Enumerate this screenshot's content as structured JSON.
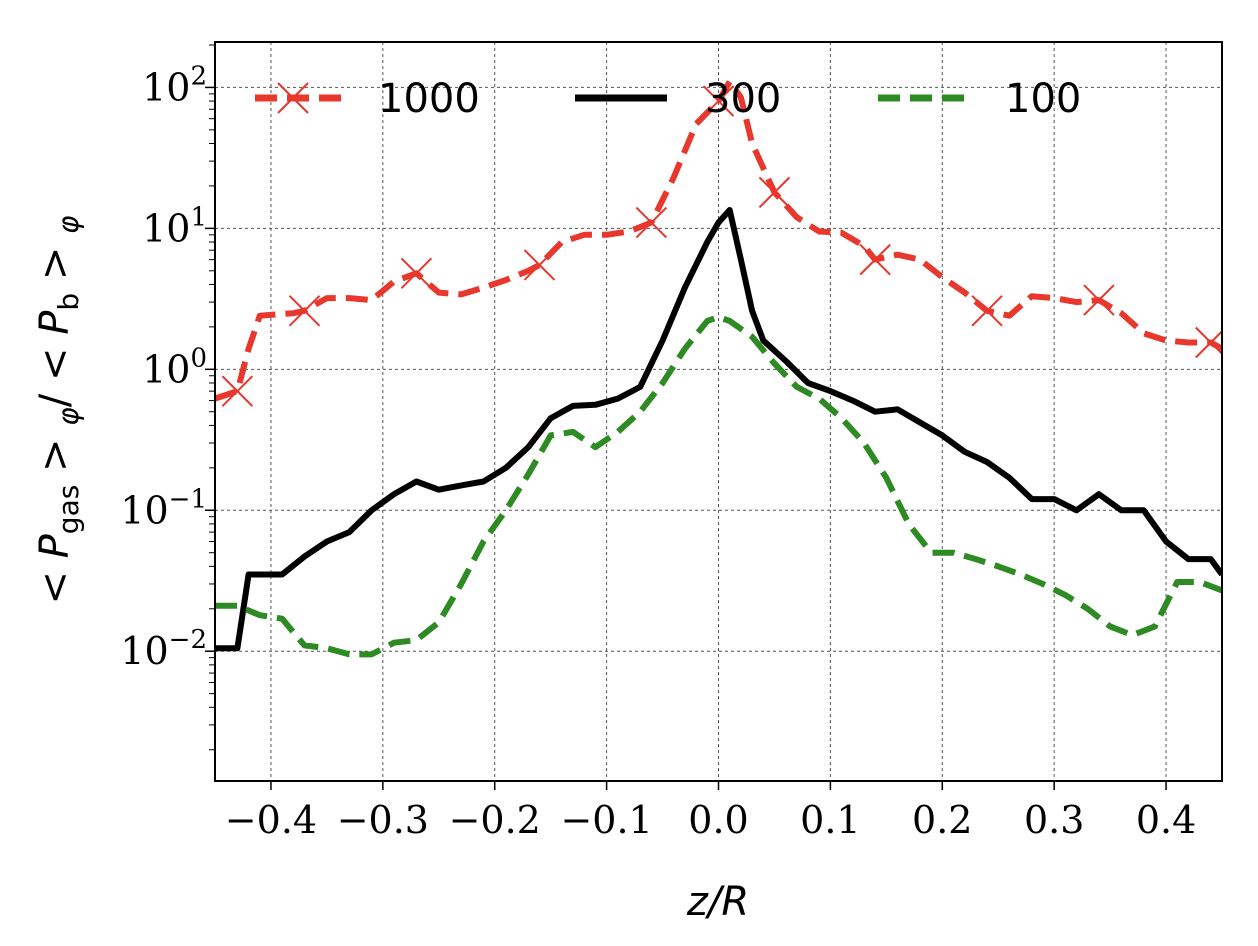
{
  "chart_data": {
    "type": "line",
    "xlabel": "z/R",
    "ylabel": "< P_gas >_φ / < P_b >_φ",
    "ylabel_parts": {
      "open": "< ",
      "p1": "P",
      "sub1": "gas",
      "mid": " > ",
      "phi1": "φ",
      "slash": "/ < ",
      "p2": "P",
      "sub2": "b",
      "close": " > ",
      "phi2": "φ"
    },
    "xlim": [
      -0.45,
      0.45
    ],
    "ylim": [
      0.0012,
      210
    ],
    "yscale": "log",
    "grid": true,
    "legend": {
      "placement": "top",
      "columns": 3
    },
    "x_ticks": [
      -0.4,
      -0.3,
      -0.2,
      -0.1,
      0.0,
      0.1,
      0.2,
      0.3,
      0.4
    ],
    "x_tick_labels": [
      "−0.4",
      "−0.3",
      "−0.2",
      "−0.1",
      "0.0",
      "0.1",
      "0.2",
      "0.3",
      "0.4"
    ],
    "y_ticks": [
      0.01,
      0.1,
      1,
      10,
      100
    ],
    "y_tick_labels": [
      {
        "base": "10",
        "exp": "−2"
      },
      {
        "base": "10",
        "exp": "−1"
      },
      {
        "base": "10",
        "exp": "0"
      },
      {
        "base": "10",
        "exp": "1"
      },
      {
        "base": "10",
        "exp": "2"
      }
    ],
    "series": [
      {
        "name": "1000",
        "color": "#e8372c",
        "style": "dashed",
        "marker": "x",
        "marker_x": [
          -0.43,
          -0.37,
          -0.27,
          -0.16,
          -0.06,
          0.0,
          0.05,
          0.14,
          0.24,
          0.34,
          0.44
        ],
        "x": [
          -0.45,
          -0.43,
          -0.42,
          -0.41,
          -0.38,
          -0.37,
          -0.35,
          -0.33,
          -0.31,
          -0.29,
          -0.27,
          -0.25,
          -0.23,
          -0.21,
          -0.19,
          -0.17,
          -0.16,
          -0.14,
          -0.12,
          -0.1,
          -0.08,
          -0.06,
          -0.04,
          -0.02,
          0.0,
          0.01,
          0.02,
          0.03,
          0.05,
          0.07,
          0.09,
          0.11,
          0.13,
          0.14,
          0.16,
          0.18,
          0.2,
          0.22,
          0.24,
          0.26,
          0.28,
          0.3,
          0.32,
          0.34,
          0.36,
          0.38,
          0.4,
          0.42,
          0.44,
          0.45
        ],
        "values": [
          0.62,
          0.7,
          1.4,
          2.4,
          2.5,
          2.6,
          3.2,
          3.2,
          3.1,
          4.2,
          4.8,
          3.5,
          3.4,
          3.8,
          4.3,
          5.0,
          5.5,
          8.0,
          9.0,
          9.0,
          9.5,
          11.0,
          23,
          55,
          80,
          110,
          85,
          40,
          18,
          12,
          9.5,
          9.3,
          7.5,
          6.0,
          6.5,
          6.0,
          4.5,
          3.5,
          2.6,
          2.4,
          3.3,
          3.2,
          3.0,
          3.1,
          2.5,
          1.8,
          1.6,
          1.55,
          1.55,
          1.4
        ]
      },
      {
        "name": "300",
        "color": "#000000",
        "style": "solid",
        "x": [
          -0.45,
          -0.43,
          -0.42,
          -0.39,
          -0.37,
          -0.35,
          -0.33,
          -0.31,
          -0.29,
          -0.27,
          -0.25,
          -0.23,
          -0.21,
          -0.19,
          -0.17,
          -0.15,
          -0.13,
          -0.11,
          -0.09,
          -0.07,
          -0.05,
          -0.03,
          -0.01,
          0.0,
          0.01,
          0.02,
          0.03,
          0.04,
          0.06,
          0.08,
          0.1,
          0.12,
          0.14,
          0.16,
          0.18,
          0.2,
          0.22,
          0.24,
          0.26,
          0.28,
          0.3,
          0.32,
          0.34,
          0.36,
          0.38,
          0.4,
          0.42,
          0.44,
          0.45
        ],
        "values": [
          0.0105,
          0.0105,
          0.035,
          0.035,
          0.047,
          0.06,
          0.07,
          0.1,
          0.13,
          0.16,
          0.14,
          0.15,
          0.16,
          0.2,
          0.28,
          0.45,
          0.55,
          0.56,
          0.62,
          0.75,
          1.6,
          3.8,
          8.0,
          11.0,
          13.5,
          6.0,
          2.6,
          1.6,
          1.15,
          0.8,
          0.7,
          0.6,
          0.5,
          0.52,
          0.42,
          0.34,
          0.26,
          0.22,
          0.17,
          0.12,
          0.12,
          0.1,
          0.13,
          0.1,
          0.1,
          0.06,
          0.045,
          0.045,
          0.035
        ]
      },
      {
        "name": "100",
        "color": "#2e8b23",
        "style": "dashed",
        "x": [
          -0.45,
          -0.43,
          -0.41,
          -0.39,
          -0.37,
          -0.35,
          -0.33,
          -0.31,
          -0.29,
          -0.27,
          -0.25,
          -0.23,
          -0.21,
          -0.19,
          -0.17,
          -0.15,
          -0.13,
          -0.11,
          -0.09,
          -0.07,
          -0.05,
          -0.03,
          -0.01,
          0.0,
          0.01,
          0.03,
          0.05,
          0.07,
          0.09,
          0.11,
          0.13,
          0.15,
          0.17,
          0.19,
          0.21,
          0.23,
          0.25,
          0.27,
          0.29,
          0.31,
          0.33,
          0.35,
          0.37,
          0.39,
          0.41,
          0.43,
          0.45
        ],
        "values": [
          0.021,
          0.021,
          0.018,
          0.017,
          0.011,
          0.0105,
          0.0095,
          0.0095,
          0.0115,
          0.012,
          0.016,
          0.03,
          0.06,
          0.1,
          0.18,
          0.34,
          0.36,
          0.28,
          0.36,
          0.5,
          0.8,
          1.4,
          2.2,
          2.35,
          2.2,
          1.7,
          1.1,
          0.75,
          0.62,
          0.45,
          0.3,
          0.17,
          0.08,
          0.05,
          0.05,
          0.045,
          0.04,
          0.035,
          0.03,
          0.025,
          0.02,
          0.015,
          0.013,
          0.015,
          0.031,
          0.031,
          0.027
        ]
      }
    ]
  }
}
